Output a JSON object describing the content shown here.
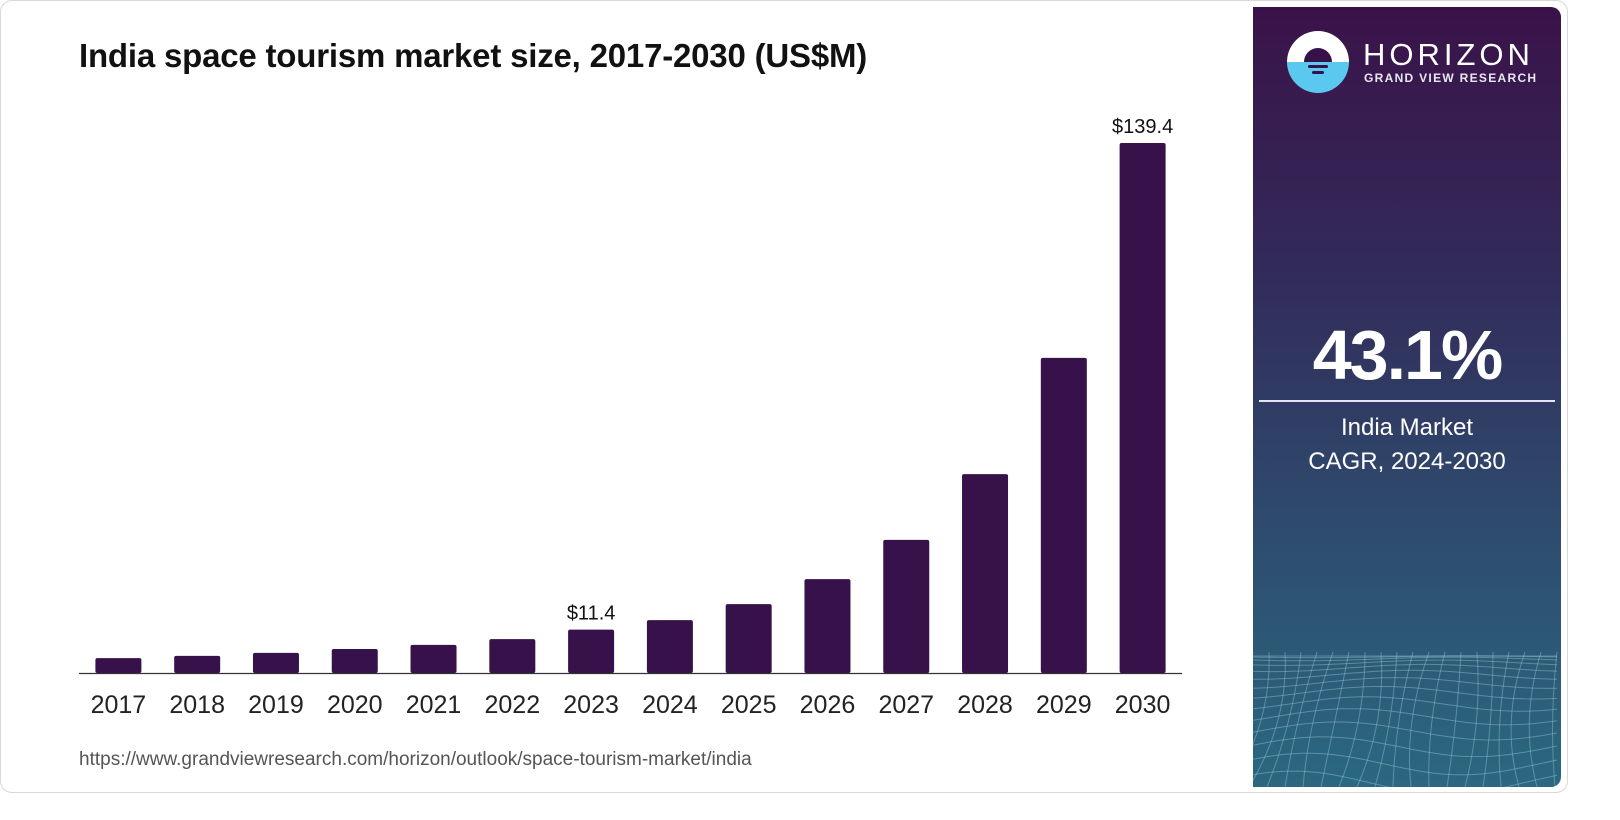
{
  "header": {
    "title": "India space tourism market size, 2017-2030 (US$M)"
  },
  "footer": {
    "source_url": "https://www.grandviewresearch.com/horizon/outlook/space-tourism-market/india"
  },
  "sidebar": {
    "brand": "HORIZON",
    "brand_sub": "GRAND VIEW RESEARCH",
    "cagr_value": "43.1%",
    "cagr_label_line1": "India Market",
    "cagr_label_line2": "CAGR, 2024-2030",
    "logo_icon": "horizon-sun-logo-icon"
  },
  "colors": {
    "bar": "#36114a",
    "sidebar_top": "#3a1249",
    "sidebar_bottom": "#2a6880",
    "logo_water": "#5bc8f0"
  },
  "chart_data": {
    "type": "bar",
    "title": "India space tourism market size, 2017-2030 (US$M)",
    "xlabel": "",
    "ylabel": "",
    "categories": [
      "2017",
      "2018",
      "2019",
      "2020",
      "2021",
      "2022",
      "2023",
      "2024",
      "2025",
      "2026",
      "2027",
      "2028",
      "2029",
      "2030"
    ],
    "values": [
      3.9,
      4.5,
      5.3,
      6.3,
      7.4,
      8.9,
      11.4,
      13.9,
      18.1,
      24.7,
      35.0,
      52.3,
      82.9,
      139.4
    ],
    "data_labels": {
      "2023": "$11.4",
      "2030": "$139.4"
    },
    "ylim": [
      0,
      139.4
    ],
    "grid": false,
    "legend": "none"
  }
}
